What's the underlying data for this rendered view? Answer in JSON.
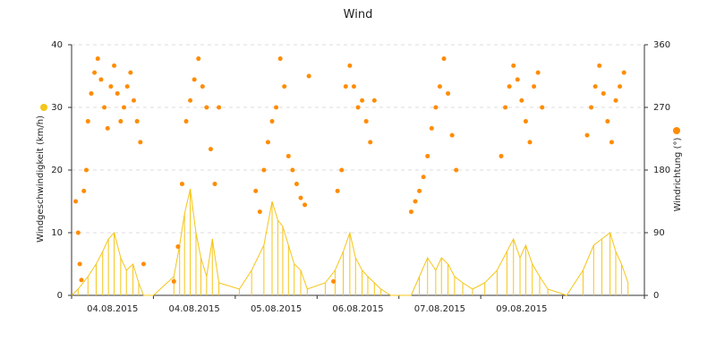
{
  "chart_data": {
    "type": "line",
    "title": "Wind",
    "ylabel_left": "Windgeschwindigkeit (km/h)",
    "ylabel_right": "Windrichtung (°)",
    "left_axis": {
      "min": 0,
      "max": 40,
      "ticks": [
        0,
        10,
        20,
        30,
        40
      ]
    },
    "right_axis": {
      "min": 0,
      "max": 360,
      "ticks": [
        0,
        90,
        180,
        270,
        360
      ]
    },
    "x_axis": {
      "min": 0,
      "max": 7,
      "tick_labels": [
        "04.08.2015",
        "04.08.2015",
        "05.08.2015",
        "06.08.2015",
        "07.08.2015",
        "09.08.2015",
        ""
      ]
    },
    "grid": "horizontal dashed",
    "colors": {
      "speed": "#f5c518",
      "direction": "#ff8c00",
      "grid": "#dddddd",
      "axis": "#333333"
    },
    "series": [
      {
        "axis": "left",
        "kind": "line",
        "color": "#f5c518",
        "x": [
          0.0,
          0.08,
          0.2,
          0.3,
          0.38,
          0.45,
          0.52,
          0.6,
          0.67,
          0.75,
          0.82,
          0.88,
          1.0,
          1.25,
          1.32,
          1.38,
          1.45,
          1.52,
          1.58,
          1.65,
          1.72,
          1.8,
          2.05,
          2.2,
          2.35,
          2.45,
          2.52,
          2.58,
          2.65,
          2.72,
          2.8,
          2.88,
          3.1,
          3.22,
          3.32,
          3.4,
          3.47,
          3.55,
          3.62,
          3.7,
          3.78,
          3.9,
          4.15,
          4.25,
          4.35,
          4.45,
          4.52,
          4.6,
          4.68,
          4.78,
          4.9,
          5.05,
          5.2,
          5.32,
          5.4,
          5.48,
          5.55,
          5.63,
          5.72,
          5.82,
          6.05,
          6.25,
          6.38,
          6.48,
          6.58,
          6.65,
          6.72,
          6.8
        ],
        "y": [
          0,
          1,
          3,
          5,
          7,
          9,
          10,
          6,
          4,
          5,
          2,
          0,
          0,
          3,
          8,
          13,
          17,
          10,
          6,
          3,
          9,
          2,
          1,
          4,
          8,
          15,
          12,
          11,
          8,
          5,
          4,
          1,
          2,
          4,
          7,
          10,
          6,
          4,
          3,
          2,
          1,
          0,
          0,
          3,
          6,
          4,
          6,
          5,
          3,
          2,
          1,
          2,
          4,
          7,
          9,
          6,
          8,
          5,
          3,
          1,
          0,
          4,
          8,
          9,
          10,
          7,
          5,
          2
        ]
      },
      {
        "axis": "right",
        "kind": "scatter",
        "color": "#ff8c00",
        "x": [
          0.05,
          0.08,
          0.1,
          0.12,
          0.15,
          0.18,
          0.2,
          0.24,
          0.28,
          0.32,
          0.36,
          0.4,
          0.44,
          0.48,
          0.52,
          0.56,
          0.6,
          0.64,
          0.68,
          0.72,
          0.76,
          0.8,
          0.84,
          0.88,
          1.25,
          1.3,
          1.35,
          1.4,
          1.45,
          1.5,
          1.55,
          1.6,
          1.65,
          1.7,
          1.75,
          1.8,
          2.25,
          2.3,
          2.35,
          2.4,
          2.45,
          2.5,
          2.55,
          2.6,
          2.65,
          2.7,
          2.75,
          2.8,
          2.85,
          2.9,
          3.2,
          3.25,
          3.3,
          3.35,
          3.4,
          3.45,
          3.5,
          3.55,
          3.6,
          3.65,
          3.7,
          4.15,
          4.2,
          4.25,
          4.3,
          4.35,
          4.4,
          4.45,
          4.5,
          4.55,
          4.6,
          4.65,
          4.7,
          5.25,
          5.3,
          5.35,
          5.4,
          5.45,
          5.5,
          5.55,
          5.6,
          5.65,
          5.7,
          5.75,
          6.3,
          6.35,
          6.4,
          6.45,
          6.5,
          6.55,
          6.6,
          6.65,
          6.7,
          6.75
        ],
        "y": [
          135,
          90,
          45,
          22,
          150,
          180,
          250,
          290,
          320,
          340,
          310,
          270,
          240,
          300,
          330,
          290,
          250,
          270,
          300,
          320,
          280,
          250,
          220,
          45,
          20,
          70,
          160,
          250,
          280,
          310,
          340,
          300,
          270,
          210,
          160,
          270,
          150,
          120,
          180,
          220,
          250,
          270,
          340,
          300,
          200,
          180,
          160,
          140,
          130,
          315,
          20,
          150,
          180,
          300,
          330,
          300,
          270,
          280,
          250,
          220,
          280,
          120,
          135,
          150,
          170,
          200,
          240,
          270,
          300,
          340,
          290,
          230,
          180,
          200,
          270,
          300,
          330,
          310,
          280,
          250,
          220,
          300,
          320,
          270,
          230,
          270,
          300,
          330,
          290,
          250,
          220,
          280,
          300,
          320
        ]
      }
    ]
  }
}
